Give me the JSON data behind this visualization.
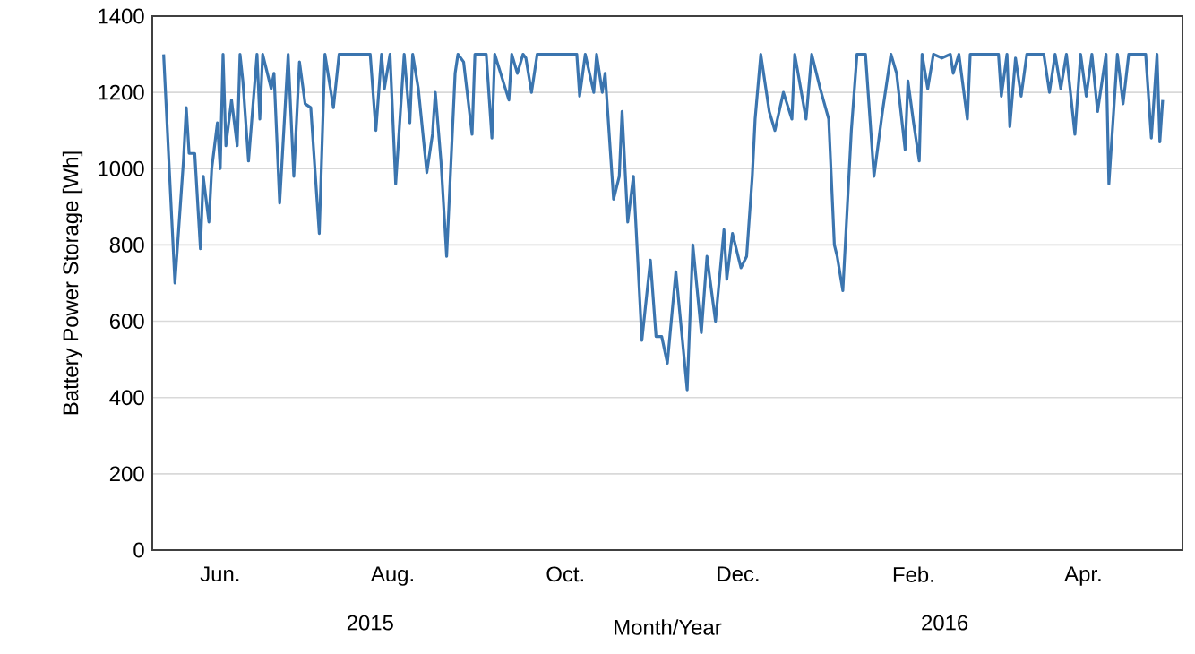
{
  "chart_data": {
    "type": "line",
    "xlabel": "Month/Year",
    "ylabel": "Battery Power Storage [Wh]",
    "color": "#3b75af",
    "marker": "none",
    "grid": "y",
    "xlim": [
      "2015-05-22",
      "2016-05-20"
    ],
    "xticks": [
      {
        "value": "2015-06-15",
        "label": "Jun."
      },
      {
        "value": "2015-08-15",
        "label": "Aug."
      },
      {
        "value": "2015-10-15",
        "label": "Oct."
      },
      {
        "value": "2015-12-15",
        "label": "Dec."
      },
      {
        "value": "2016-02-15",
        "label": "Feb."
      },
      {
        "value": "2016-04-15",
        "label": "Apr."
      }
    ],
    "x2lim": [
      "2015-05-22",
      "2016-05-20"
    ],
    "x2ticks": [
      {
        "value": "2015-08-07",
        "label": "2015"
      },
      {
        "value": "2016-02-26",
        "label": "2016"
      }
    ],
    "ylim": [
      0,
      1400
    ],
    "yticks": [
      0,
      200,
      400,
      600,
      800,
      1000,
      1200,
      1400
    ],
    "x": [
      "2015-05-26",
      "2015-05-30",
      "2015-06-02",
      "2015-06-03",
      "2015-06-04",
      "2015-06-06",
      "2015-06-08",
      "2015-06-09",
      "2015-06-11",
      "2015-06-12",
      "2015-06-14",
      "2015-06-15",
      "2015-06-16",
      "2015-06-17",
      "2015-06-19",
      "2015-06-21",
      "2015-06-22",
      "2015-06-23",
      "2015-06-25",
      "2015-06-28",
      "2015-06-29",
      "2015-06-30",
      "2015-07-03",
      "2015-07-04",
      "2015-07-06",
      "2015-07-09",
      "2015-07-11",
      "2015-07-13",
      "2015-07-15",
      "2015-07-17",
      "2015-07-20",
      "2015-07-22",
      "2015-07-25",
      "2015-07-27",
      "2015-08-07",
      "2015-08-09",
      "2015-08-11",
      "2015-08-12",
      "2015-08-14",
      "2015-08-16",
      "2015-08-19",
      "2015-08-21",
      "2015-08-22",
      "2015-08-24",
      "2015-08-27",
      "2015-08-29",
      "2015-08-30",
      "2015-09-01",
      "2015-09-03",
      "2015-09-06",
      "2015-09-07",
      "2015-09-09",
      "2015-09-12",
      "2015-09-13",
      "2015-09-17",
      "2015-09-19",
      "2015-09-20",
      "2015-09-25",
      "2015-09-26",
      "2015-09-28",
      "2015-09-30",
      "2015-10-01",
      "2015-10-03",
      "2015-10-05",
      "2015-10-19",
      "2015-10-20",
      "2015-10-22",
      "2015-10-25",
      "2015-10-26",
      "2015-10-28",
      "2015-10-29",
      "2015-11-01",
      "2015-11-03",
      "2015-11-04",
      "2015-11-06",
      "2015-11-08",
      "2015-11-11",
      "2015-11-14",
      "2015-11-16",
      "2015-11-18",
      "2015-11-20",
      "2015-11-23",
      "2015-11-27",
      "2015-11-29",
      "2015-12-02",
      "2015-12-04",
      "2015-12-07",
      "2015-12-10",
      "2015-12-11",
      "2015-12-13",
      "2015-12-14",
      "2015-12-16",
      "2015-12-18",
      "2015-12-20",
      "2015-12-21",
      "2015-12-23",
      "2015-12-26",
      "2015-12-28",
      "2015-12-31",
      "2016-01-03",
      "2016-01-04",
      "2016-01-08",
      "2016-01-10",
      "2016-01-13",
      "2016-01-16",
      "2016-01-18",
      "2016-01-19",
      "2016-01-21",
      "2016-01-24",
      "2016-01-26",
      "2016-01-29",
      "2016-02-01",
      "2016-02-04",
      "2016-02-07",
      "2016-02-09",
      "2016-02-12",
      "2016-02-13",
      "2016-02-15",
      "2016-02-17",
      "2016-02-18",
      "2016-02-20",
      "2016-02-22",
      "2016-02-25",
      "2016-02-28",
      "2016-02-29",
      "2016-03-02",
      "2016-03-05",
      "2016-03-06",
      "2016-03-16",
      "2016-03-17",
      "2016-03-19",
      "2016-03-20",
      "2016-03-22",
      "2016-03-24",
      "2016-03-26",
      "2016-04-01",
      "2016-04-03",
      "2016-04-05",
      "2016-04-07",
      "2016-04-09",
      "2016-04-12",
      "2016-04-14",
      "2016-04-16",
      "2016-04-18",
      "2016-04-20",
      "2016-04-23",
      "2016-04-24",
      "2016-04-27",
      "2016-04-29",
      "2016-05-01",
      "2016-05-07",
      "2016-05-09",
      "2016-05-11",
      "2016-05-12",
      "2016-05-13"
    ],
    "values": [
      1300,
      700,
      1020,
      1160,
      1040,
      1040,
      790,
      980,
      860,
      1000,
      1120,
      1000,
      1300,
      1060,
      1180,
      1060,
      1300,
      1230,
      1020,
      1300,
      1130,
      1300,
      1210,
      1250,
      910,
      1300,
      980,
      1280,
      1170,
      1160,
      830,
      1300,
      1160,
      1300,
      1300,
      1100,
      1300,
      1210,
      1300,
      960,
      1300,
      1120,
      1300,
      1210,
      990,
      1090,
      1200,
      1020,
      770,
      1250,
      1300,
      1280,
      1090,
      1300,
      1300,
      1080,
      1300,
      1180,
      1300,
      1250,
      1300,
      1290,
      1200,
      1300,
      1300,
      1190,
      1300,
      1200,
      1300,
      1200,
      1250,
      920,
      980,
      1150,
      860,
      980,
      550,
      760,
      560,
      560,
      490,
      730,
      420,
      800,
      570,
      770,
      600,
      840,
      710,
      830,
      800,
      740,
      770,
      980,
      1130,
      1300,
      1150,
      1100,
      1200,
      1130,
      1300,
      1130,
      1300,
      1210,
      1130,
      800,
      770,
      680,
      1100,
      1300,
      1300,
      980,
      1150,
      1300,
      1250,
      1050,
      1230,
      1120,
      1020,
      1300,
      1210,
      1300,
      1290,
      1300,
      1250,
      1300,
      1130,
      1300,
      1300,
      1190,
      1300,
      1110,
      1290,
      1190,
      1300,
      1300,
      1200,
      1300,
      1210,
      1300,
      1090,
      1300,
      1190,
      1300,
      1150,
      1300,
      960,
      1300,
      1170,
      1300,
      1300,
      1080,
      1300,
      1070,
      1180
    ]
  }
}
